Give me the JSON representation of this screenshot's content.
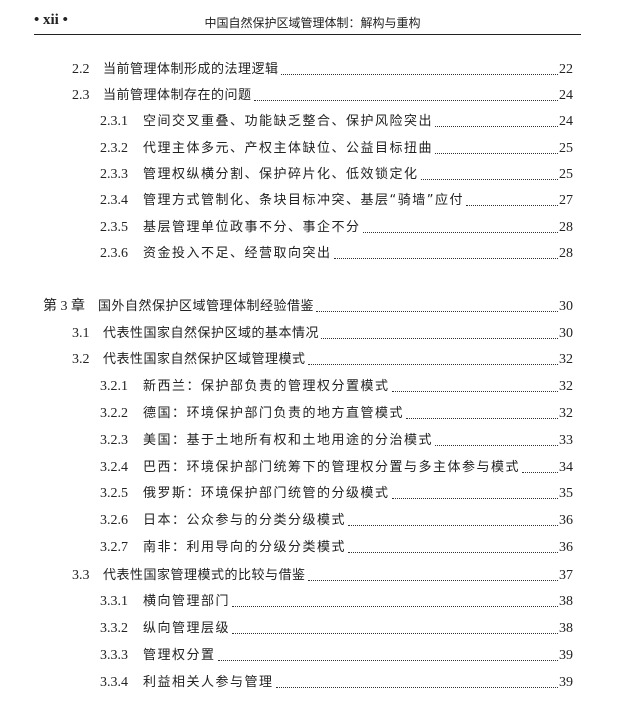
{
  "header": {
    "page_number": "• xii •",
    "book_title": "中国自然保护区域管理体制：解构与重构"
  },
  "toc": [
    {
      "level": 2,
      "num": "2.2",
      "title": "当前管理体制形成的法理逻辑",
      "page": "22"
    },
    {
      "level": 2,
      "num": "2.3",
      "title": "当前管理体制存在的问题",
      "page": "24"
    },
    {
      "level": 3,
      "num": "2.3.1",
      "title": "空间交叉重叠、功能缺乏整合、保护风险突出",
      "page": "24"
    },
    {
      "level": 3,
      "num": "2.3.2",
      "title": "代理主体多元、产权主体缺位、公益目标扭曲",
      "page": "25"
    },
    {
      "level": 3,
      "num": "2.3.3",
      "title": "管理权纵横分割、保护碎片化、低效锁定化",
      "page": "25"
    },
    {
      "level": 3,
      "num": "2.3.4",
      "title": "管理方式管制化、条块目标冲突、基层“骑墙”应付",
      "page": "27"
    },
    {
      "level": 3,
      "num": "2.3.5",
      "title": "基层管理单位政事不分、事企不分",
      "page": "28"
    },
    {
      "level": 3,
      "num": "2.3.6",
      "title": "资金投入不足、经营取向突出",
      "page": "28"
    },
    {
      "level": 1,
      "num": "第 3 章",
      "title": "国外自然保护区域管理体制经验借鉴",
      "page": "30"
    },
    {
      "level": 2,
      "num": "3.1",
      "title": "代表性国家自然保护区域的基本情况",
      "page": "30"
    },
    {
      "level": 2,
      "num": "3.2",
      "title": "代表性国家自然保护区域管理模式",
      "page": "32"
    },
    {
      "level": 3,
      "num": "3.2.1",
      "title": "新西兰：保护部负责的管理权分置模式",
      "page": "32"
    },
    {
      "level": 3,
      "num": "3.2.2",
      "title": "德国：环境保护部门负责的地方直管模式",
      "page": "32"
    },
    {
      "level": 3,
      "num": "3.2.3",
      "title": "美国：基于土地所有权和土地用途的分治模式",
      "page": "33"
    },
    {
      "level": 3,
      "num": "3.2.4",
      "title": "巴西：环境保护部门统筹下的管理权分置与多主体参与模式",
      "page": "34"
    },
    {
      "level": 3,
      "num": "3.2.5",
      "title": "俄罗斯：环境保护部门统管的分级模式",
      "page": "35"
    },
    {
      "level": 3,
      "num": "3.2.6",
      "title": "日本：公众参与的分类分级模式",
      "page": "36"
    },
    {
      "level": 3,
      "num": "3.2.7",
      "title": "南非：利用导向的分级分类模式",
      "page": "36"
    },
    {
      "level": 2,
      "num": "3.3",
      "title": "代表性国家管理模式的比较与借鉴",
      "page": "37"
    },
    {
      "level": 3,
      "num": "3.3.1",
      "title": "横向管理部门",
      "page": "38"
    },
    {
      "level": 3,
      "num": "3.3.2",
      "title": "纵向管理层级",
      "page": "38"
    },
    {
      "level": 3,
      "num": "3.3.3",
      "title": "管理权分置",
      "page": "39"
    },
    {
      "level": 3,
      "num": "3.3.4",
      "title": "利益相关人参与管理",
      "page": "39"
    }
  ]
}
